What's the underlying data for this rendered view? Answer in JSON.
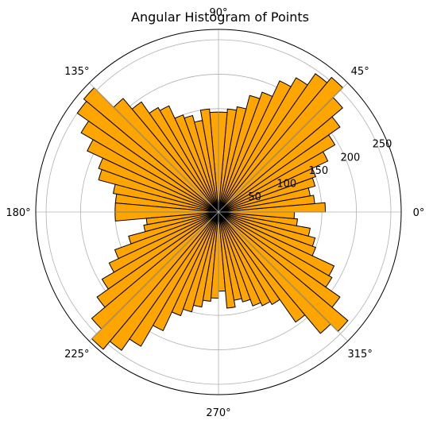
{
  "chart_data": {
    "type": "bar",
    "projection": "polar",
    "title": "Angular Histogram of Points",
    "bar_color": "#ffa500",
    "edge_color": "#000000",
    "grid": true,
    "bin_width_deg": 5,
    "angle_ticks": [
      "0°",
      "45°",
      "90°",
      "135°",
      "180°",
      "225°",
      "270°",
      "315°"
    ],
    "angle_tick_values_deg": [
      0,
      45,
      90,
      135,
      180,
      225,
      270,
      315
    ],
    "radial_ticks": [
      "50",
      "100",
      "150",
      "200",
      "250"
    ],
    "radial_tick_values": [
      50,
      100,
      150,
      200,
      250
    ],
    "rlim": [
      0,
      265
    ],
    "bin_start_deg": [
      0,
      5,
      10,
      15,
      20,
      25,
      30,
      35,
      40,
      45,
      50,
      55,
      60,
      65,
      70,
      75,
      80,
      85,
      90,
      95,
      100,
      105,
      110,
      115,
      120,
      125,
      130,
      135,
      140,
      145,
      150,
      155,
      160,
      165,
      170,
      175,
      180,
      185,
      190,
      195,
      200,
      205,
      210,
      215,
      220,
      225,
      230,
      235,
      240,
      245,
      250,
      255,
      260,
      265,
      270,
      275,
      280,
      285,
      290,
      295,
      300,
      305,
      310,
      315,
      320,
      325,
      330,
      335,
      340,
      345,
      350,
      355
    ],
    "values": [
      155,
      140,
      135,
      145,
      150,
      175,
      195,
      215,
      235,
      255,
      245,
      225,
      210,
      185,
      175,
      155,
      150,
      145,
      145,
      150,
      135,
      145,
      150,
      170,
      175,
      195,
      215,
      255,
      250,
      230,
      210,
      185,
      180,
      155,
      150,
      150,
      150,
      105,
      110,
      135,
      160,
      175,
      195,
      215,
      240,
      260,
      245,
      225,
      190,
      160,
      150,
      140,
      130,
      125,
      115,
      140,
      130,
      135,
      145,
      150,
      155,
      195,
      230,
      245,
      215,
      190,
      185,
      150,
      145,
      135,
      115,
      110
    ]
  }
}
